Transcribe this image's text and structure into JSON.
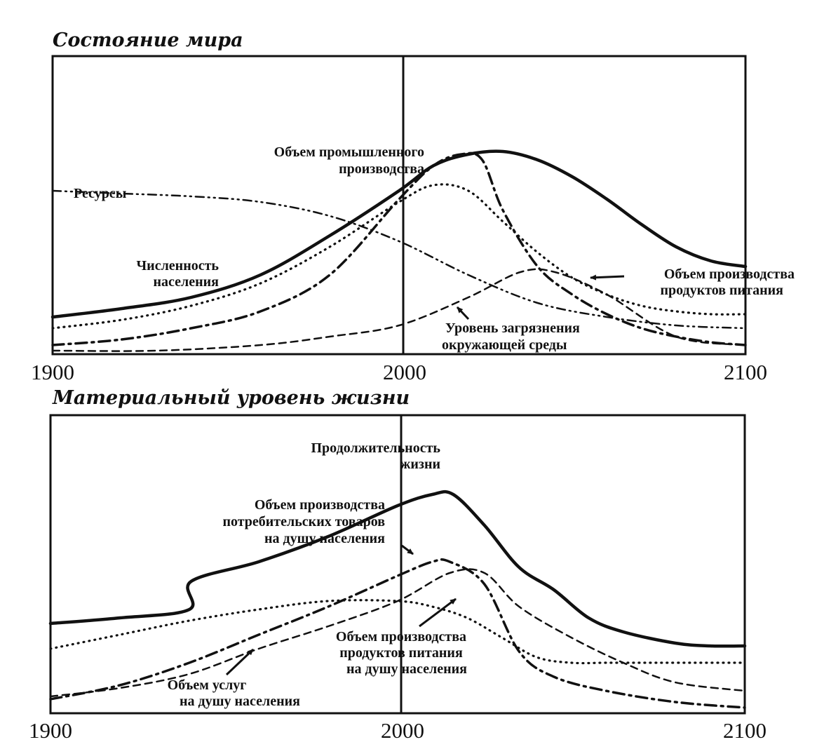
{
  "chart_data": [
    {
      "type": "line",
      "title": "Состояние мира",
      "x_ticks": [
        "1900",
        "2000",
        "2100"
      ],
      "xlim": [
        1900,
        2100
      ],
      "ylim": [
        0,
        1
      ],
      "grid": false,
      "vertical_marker": 2000,
      "series": [
        {
          "key": "population",
          "name_lines": [
            "Численность",
            "населения"
          ],
          "dash": "solid",
          "x": [
            1900,
            1920,
            1940,
            1960,
            1980,
            2000,
            2010,
            2020,
            2030,
            2040,
            2050,
            2060,
            2070,
            2080,
            2090,
            2100
          ],
          "y": [
            0.12,
            0.15,
            0.19,
            0.27,
            0.41,
            0.57,
            0.66,
            0.7,
            0.71,
            0.68,
            0.62,
            0.54,
            0.45,
            0.37,
            0.32,
            0.3
          ]
        },
        {
          "key": "industrial_output",
          "name_lines": [
            "Объем промышленного",
            "производства"
          ],
          "dash": "dashdot",
          "x": [
            1900,
            1920,
            1940,
            1960,
            1980,
            2000,
            2010,
            2018,
            2024,
            2030,
            2040,
            2050,
            2060,
            2070,
            2080,
            2090,
            2100
          ],
          "y": [
            0.02,
            0.04,
            0.08,
            0.14,
            0.27,
            0.54,
            0.66,
            0.7,
            0.68,
            0.5,
            0.3,
            0.2,
            0.13,
            0.08,
            0.05,
            0.03,
            0.02
          ]
        },
        {
          "key": "food",
          "name_lines": [
            "Объем производства",
            "продуктов питания"
          ],
          "dash": "dotted",
          "x": [
            1900,
            1920,
            1940,
            1960,
            1980,
            2000,
            2010,
            2020,
            2030,
            2040,
            2050,
            2060,
            2070,
            2080,
            2090,
            2100
          ],
          "y": [
            0.08,
            0.11,
            0.16,
            0.24,
            0.37,
            0.53,
            0.59,
            0.57,
            0.46,
            0.35,
            0.26,
            0.2,
            0.16,
            0.14,
            0.13,
            0.13
          ]
        },
        {
          "key": "resources",
          "name_lines": [
            "Ресурсы"
          ],
          "dash": "dashdotdot",
          "x": [
            1900,
            1920,
            1940,
            1960,
            1980,
            2000,
            2020,
            2040,
            2060,
            2080,
            2100
          ],
          "y": [
            0.57,
            0.56,
            0.55,
            0.53,
            0.48,
            0.39,
            0.27,
            0.17,
            0.12,
            0.09,
            0.08
          ]
        },
        {
          "key": "pollution",
          "name_lines": [
            "Уровень загрязнения",
            "окружающей среды"
          ],
          "dash": "dashed",
          "x": [
            1900,
            1930,
            1960,
            1980,
            2000,
            2020,
            2035,
            2045,
            2060,
            2080,
            2100
          ],
          "y": [
            0.0,
            0.0,
            0.02,
            0.05,
            0.09,
            0.19,
            0.28,
            0.28,
            0.2,
            0.05,
            0.02
          ]
        }
      ]
    },
    {
      "type": "line",
      "title": "Материальный уровень жизни",
      "x_ticks": [
        "1900",
        "2000",
        "2100"
      ],
      "xlim": [
        1900,
        2100
      ],
      "ylim": [
        0,
        1
      ],
      "grid": false,
      "vertical_marker": 2000,
      "series": [
        {
          "key": "life_expectancy",
          "name_lines": [
            "Продолжительность",
            "жизни"
          ],
          "dash": "solid",
          "x": [
            1900,
            1920,
            1940,
            1940.5,
            1960,
            1980,
            2000,
            2010,
            2016,
            2025,
            2035,
            2045,
            2055,
            2065,
            2080,
            2090,
            2100
          ],
          "y": [
            0.31,
            0.33,
            0.36,
            0.46,
            0.53,
            0.62,
            0.73,
            0.77,
            0.77,
            0.66,
            0.51,
            0.43,
            0.33,
            0.28,
            0.24,
            0.23,
            0.23
          ]
        },
        {
          "key": "consumer_goods",
          "name_lines": [
            "Объем производства",
            "потребительских товаров",
            "на душу населения"
          ],
          "dash": "dashdot",
          "x": [
            1900,
            1920,
            1940,
            1960,
            1980,
            2000,
            2010,
            2015,
            2025,
            2035,
            2045,
            2060,
            2080,
            2100
          ],
          "y": [
            0.04,
            0.09,
            0.17,
            0.27,
            0.37,
            0.48,
            0.53,
            0.53,
            0.45,
            0.21,
            0.12,
            0.07,
            0.03,
            0.01
          ]
        },
        {
          "key": "food_per_capita",
          "name_lines": [
            "Объем производства",
            "продуктов питания",
            "на душу населения"
          ],
          "dash": "dotted",
          "x": [
            1900,
            1920,
            1940,
            1960,
            1980,
            2000,
            2010,
            2020,
            2030,
            2040,
            2050,
            2060,
            2070,
            2080,
            2100
          ],
          "y": [
            0.22,
            0.27,
            0.32,
            0.36,
            0.39,
            0.39,
            0.37,
            0.33,
            0.26,
            0.19,
            0.17,
            0.17,
            0.17,
            0.17,
            0.17
          ]
        },
        {
          "key": "services_per_capita",
          "name_lines": [
            "Объем услуг",
            "на душу населения"
          ],
          "dash": "dashed",
          "x": [
            1900,
            1920,
            1940,
            1960,
            1980,
            2000,
            2015,
            2025,
            2035,
            2050,
            2065,
            2080,
            2100
          ],
          "y": [
            0.05,
            0.08,
            0.13,
            0.22,
            0.3,
            0.39,
            0.49,
            0.49,
            0.37,
            0.26,
            0.17,
            0.1,
            0.07
          ]
        }
      ]
    }
  ]
}
